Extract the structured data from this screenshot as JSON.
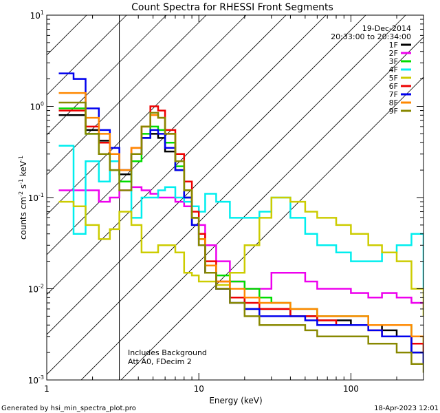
{
  "chart_data": {
    "type": "line",
    "title": "Count Spectra for RHESSI Front Segments",
    "xlabel": "Energy (keV)",
    "ylabel_main": "counts cm",
    "ylabel_sup1": "-2",
    "ylabel_mid1": " s",
    "ylabel_sup2": "-1",
    "ylabel_mid2": " keV",
    "ylabel_sup3": "-1",
    "x_scale": "log",
    "y_scale": "log",
    "xlim": [
      1,
      300
    ],
    "ylim": [
      0.001,
      10
    ],
    "x_ticks": [
      {
        "value": 1,
        "label": "1"
      },
      {
        "value": 10,
        "label": "10"
      },
      {
        "value": 100,
        "label": "100"
      }
    ],
    "y_ticks": [
      {
        "value": 10,
        "base": "10",
        "exp": "1"
      },
      {
        "value": 1,
        "base": "10",
        "exp": "0"
      },
      {
        "value": 0.1,
        "base": "10",
        "exp": "-1"
      },
      {
        "value": 0.01,
        "base": "10",
        "exp": "-2"
      },
      {
        "value": 0.001,
        "base": "10",
        "exp": "-3"
      }
    ],
    "hatched_region": [
      1,
      3
    ],
    "legend": {
      "date": "19-Dec-2014",
      "time_range": "20:33:00 to 20:34:00",
      "placement": "top-right"
    },
    "annotation_lines": [
      "Includes Background",
      "Att A0, FDecim 2"
    ],
    "footer_left": "Generated by hsi_min_spectra_plot.pro",
    "footer_right": "18-Apr-2023 12:01",
    "series": [
      {
        "name": "1F",
        "color": "#000000",
        "points": [
          [
            1.2,
            0.8
          ],
          [
            1.5,
            0.8
          ],
          [
            1.8,
            0.55
          ],
          [
            2.2,
            0.42
          ],
          [
            2.6,
            0.3
          ],
          [
            3,
            0.18
          ],
          [
            3.6,
            0.3
          ],
          [
            4.2,
            0.45
          ],
          [
            4.8,
            0.5
          ],
          [
            5.4,
            0.45
          ],
          [
            6,
            0.32
          ],
          [
            7,
            0.2
          ],
          [
            8,
            0.1
          ],
          [
            9,
            0.05
          ],
          [
            10,
            0.03
          ],
          [
            11,
            0.015
          ],
          [
            13,
            0.01
          ],
          [
            16,
            0.008
          ],
          [
            20,
            0.006
          ],
          [
            25,
            0.006
          ],
          [
            30,
            0.006
          ],
          [
            40,
            0.005
          ],
          [
            50,
            0.005
          ],
          [
            60,
            0.0045
          ],
          [
            80,
            0.0045
          ],
          [
            100,
            0.004
          ],
          [
            130,
            0.004
          ],
          [
            160,
            0.0035
          ],
          [
            200,
            0.003
          ],
          [
            250,
            0.002
          ],
          [
            300,
            0.0015
          ]
        ]
      },
      {
        "name": "2F",
        "color": "#ee00ee",
        "points": [
          [
            1.2,
            0.12
          ],
          [
            1.5,
            0.12
          ],
          [
            1.8,
            0.12
          ],
          [
            2.2,
            0.09
          ],
          [
            2.6,
            0.1
          ],
          [
            3,
            0.12
          ],
          [
            3.6,
            0.13
          ],
          [
            4.2,
            0.12
          ],
          [
            4.8,
            0.11
          ],
          [
            5.4,
            0.1
          ],
          [
            6,
            0.1
          ],
          [
            7,
            0.09
          ],
          [
            8,
            0.08
          ],
          [
            9,
            0.06
          ],
          [
            10,
            0.05
          ],
          [
            11,
            0.03
          ],
          [
            13,
            0.02
          ],
          [
            16,
            0.012
          ],
          [
            20,
            0.01
          ],
          [
            25,
            0.01
          ],
          [
            30,
            0.015
          ],
          [
            40,
            0.015
          ],
          [
            50,
            0.012
          ],
          [
            60,
            0.01
          ],
          [
            80,
            0.01
          ],
          [
            100,
            0.009
          ],
          [
            130,
            0.008
          ],
          [
            160,
            0.009
          ],
          [
            200,
            0.008
          ],
          [
            250,
            0.007
          ],
          [
            300,
            0.006
          ]
        ]
      },
      {
        "name": "3F",
        "color": "#00dd00",
        "points": [
          [
            1.2,
            0.95
          ],
          [
            1.5,
            0.95
          ],
          [
            1.8,
            0.5
          ],
          [
            2.2,
            0.3
          ],
          [
            2.6,
            0.2
          ],
          [
            3,
            0.15
          ],
          [
            3.6,
            0.25
          ],
          [
            4.2,
            0.5
          ],
          [
            4.8,
            0.6
          ],
          [
            5.4,
            0.55
          ],
          [
            6,
            0.4
          ],
          [
            7,
            0.22
          ],
          [
            8,
            0.12
          ],
          [
            9,
            0.06
          ],
          [
            10,
            0.035
          ],
          [
            11,
            0.018
          ],
          [
            13,
            0.014
          ],
          [
            16,
            0.012
          ],
          [
            20,
            0.01
          ],
          [
            25,
            0.008
          ],
          [
            30,
            0.007
          ],
          [
            40,
            0.006
          ],
          [
            50,
            0.006
          ],
          [
            60,
            0.005
          ],
          [
            80,
            0.005
          ],
          [
            100,
            0.005
          ],
          [
            130,
            0.004
          ],
          [
            160,
            0.004
          ],
          [
            200,
            0.004
          ],
          [
            250,
            0.003
          ],
          [
            300,
            0.002
          ]
        ]
      },
      {
        "name": "4F",
        "color": "#00eeee",
        "points": [
          [
            1.2,
            0.37
          ],
          [
            1.5,
            0.04
          ],
          [
            1.8,
            0.25
          ],
          [
            2.2,
            0.15
          ],
          [
            2.6,
            0.25
          ],
          [
            3,
            0.2
          ],
          [
            3.6,
            0.06
          ],
          [
            4.2,
            0.1
          ],
          [
            4.8,
            0.1
          ],
          [
            5.4,
            0.12
          ],
          [
            6,
            0.13
          ],
          [
            7,
            0.1
          ],
          [
            8,
            0.09
          ],
          [
            9,
            0.08
          ],
          [
            10,
            0.07
          ],
          [
            11,
            0.11
          ],
          [
            13,
            0.09
          ],
          [
            16,
            0.06
          ],
          [
            20,
            0.06
          ],
          [
            25,
            0.07
          ],
          [
            30,
            0.1
          ],
          [
            40,
            0.06
          ],
          [
            50,
            0.04
          ],
          [
            60,
            0.03
          ],
          [
            80,
            0.025
          ],
          [
            100,
            0.02
          ],
          [
            130,
            0.02
          ],
          [
            160,
            0.025
          ],
          [
            200,
            0.03
          ],
          [
            250,
            0.04
          ],
          [
            300,
            0.01
          ]
        ]
      },
      {
        "name": "5F",
        "color": "#cccc00",
        "points": [
          [
            1.2,
            0.09
          ],
          [
            1.5,
            0.08
          ],
          [
            1.8,
            0.05
          ],
          [
            2.2,
            0.035
          ],
          [
            2.6,
            0.045
          ],
          [
            3,
            0.07
          ],
          [
            3.6,
            0.05
          ],
          [
            4.2,
            0.025
          ],
          [
            4.8,
            0.025
          ],
          [
            5.4,
            0.03
          ],
          [
            6,
            0.03
          ],
          [
            7,
            0.025
          ],
          [
            8,
            0.015
          ],
          [
            9,
            0.014
          ],
          [
            10,
            0.012
          ],
          [
            11,
            0.012
          ],
          [
            13,
            0.011
          ],
          [
            16,
            0.015
          ],
          [
            20,
            0.03
          ],
          [
            25,
            0.06
          ],
          [
            30,
            0.1
          ],
          [
            40,
            0.09
          ],
          [
            50,
            0.07
          ],
          [
            60,
            0.06
          ],
          [
            80,
            0.05
          ],
          [
            100,
            0.04
          ],
          [
            130,
            0.03
          ],
          [
            160,
            0.025
          ],
          [
            200,
            0.02
          ],
          [
            250,
            0.01
          ],
          [
            300,
            0.005
          ]
        ]
      },
      {
        "name": "6F",
        "color": "#ee0000",
        "points": [
          [
            1.2,
            0.9
          ],
          [
            1.5,
            0.9
          ],
          [
            1.8,
            0.6
          ],
          [
            2.2,
            0.4
          ],
          [
            2.6,
            0.3
          ],
          [
            3,
            0.2
          ],
          [
            3.6,
            0.35
          ],
          [
            4.2,
            0.6
          ],
          [
            4.8,
            1.0
          ],
          [
            5.4,
            0.9
          ],
          [
            6,
            0.55
          ],
          [
            7,
            0.3
          ],
          [
            8,
            0.15
          ],
          [
            9,
            0.07
          ],
          [
            10,
            0.04
          ],
          [
            11,
            0.02
          ],
          [
            13,
            0.012
          ],
          [
            16,
            0.008
          ],
          [
            20,
            0.007
          ],
          [
            25,
            0.006
          ],
          [
            30,
            0.006
          ],
          [
            40,
            0.005
          ],
          [
            50,
            0.005
          ],
          [
            60,
            0.0045
          ],
          [
            80,
            0.004
          ],
          [
            100,
            0.004
          ],
          [
            130,
            0.0035
          ],
          [
            160,
            0.003
          ],
          [
            200,
            0.003
          ],
          [
            250,
            0.0025
          ],
          [
            300,
            0.002
          ]
        ]
      },
      {
        "name": "7F",
        "color": "#0000ee",
        "points": [
          [
            1.2,
            2.3
          ],
          [
            1.5,
            2.0
          ],
          [
            1.8,
            0.95
          ],
          [
            2.2,
            0.55
          ],
          [
            2.6,
            0.35
          ],
          [
            3,
            0.2
          ],
          [
            3.6,
            0.3
          ],
          [
            4.2,
            0.45
          ],
          [
            4.8,
            0.55
          ],
          [
            5.4,
            0.5
          ],
          [
            6,
            0.35
          ],
          [
            7,
            0.2
          ],
          [
            8,
            0.1
          ],
          [
            9,
            0.05
          ],
          [
            10,
            0.03
          ],
          [
            11,
            0.015
          ],
          [
            13,
            0.01
          ],
          [
            16,
            0.007
          ],
          [
            20,
            0.006
          ],
          [
            25,
            0.005
          ],
          [
            30,
            0.005
          ],
          [
            40,
            0.005
          ],
          [
            50,
            0.0045
          ],
          [
            60,
            0.004
          ],
          [
            80,
            0.004
          ],
          [
            100,
            0.004
          ],
          [
            130,
            0.0035
          ],
          [
            160,
            0.003
          ],
          [
            200,
            0.003
          ],
          [
            250,
            0.002
          ],
          [
            300,
            0.0015
          ]
        ]
      },
      {
        "name": "8F",
        "color": "#ff8800",
        "points": [
          [
            1.2,
            1.4
          ],
          [
            1.5,
            1.4
          ],
          [
            1.8,
            0.75
          ],
          [
            2.2,
            0.5
          ],
          [
            2.6,
            0.3
          ],
          [
            3,
            0.2
          ],
          [
            3.6,
            0.35
          ],
          [
            4.2,
            0.6
          ],
          [
            4.8,
            0.8
          ],
          [
            5.4,
            0.75
          ],
          [
            6,
            0.5
          ],
          [
            7,
            0.25
          ],
          [
            8,
            0.12
          ],
          [
            9,
            0.06
          ],
          [
            10,
            0.035
          ],
          [
            11,
            0.018
          ],
          [
            13,
            0.012
          ],
          [
            16,
            0.01
          ],
          [
            20,
            0.008
          ],
          [
            25,
            0.007
          ],
          [
            30,
            0.007
          ],
          [
            40,
            0.006
          ],
          [
            50,
            0.006
          ],
          [
            60,
            0.005
          ],
          [
            80,
            0.005
          ],
          [
            100,
            0.005
          ],
          [
            130,
            0.004
          ],
          [
            160,
            0.004
          ],
          [
            200,
            0.004
          ],
          [
            250,
            0.003
          ],
          [
            300,
            0.0025
          ]
        ]
      },
      {
        "name": "9F",
        "color": "#888800",
        "points": [
          [
            1.2,
            1.1
          ],
          [
            1.5,
            1.1
          ],
          [
            1.8,
            0.5
          ],
          [
            2.2,
            0.3
          ],
          [
            2.6,
            0.2
          ],
          [
            3,
            0.12
          ],
          [
            3.6,
            0.3
          ],
          [
            4.2,
            0.6
          ],
          [
            4.8,
            0.85
          ],
          [
            5.4,
            0.75
          ],
          [
            6,
            0.5
          ],
          [
            7,
            0.25
          ],
          [
            8,
            0.12
          ],
          [
            9,
            0.06
          ],
          [
            10,
            0.03
          ],
          [
            11,
            0.015
          ],
          [
            13,
            0.01
          ],
          [
            16,
            0.007
          ],
          [
            20,
            0.005
          ],
          [
            25,
            0.004
          ],
          [
            30,
            0.004
          ],
          [
            40,
            0.004
          ],
          [
            50,
            0.0035
          ],
          [
            60,
            0.003
          ],
          [
            80,
            0.003
          ],
          [
            100,
            0.003
          ],
          [
            130,
            0.0025
          ],
          [
            160,
            0.0025
          ],
          [
            200,
            0.002
          ],
          [
            250,
            0.0015
          ],
          [
            300,
            0.0012
          ]
        ]
      }
    ]
  }
}
